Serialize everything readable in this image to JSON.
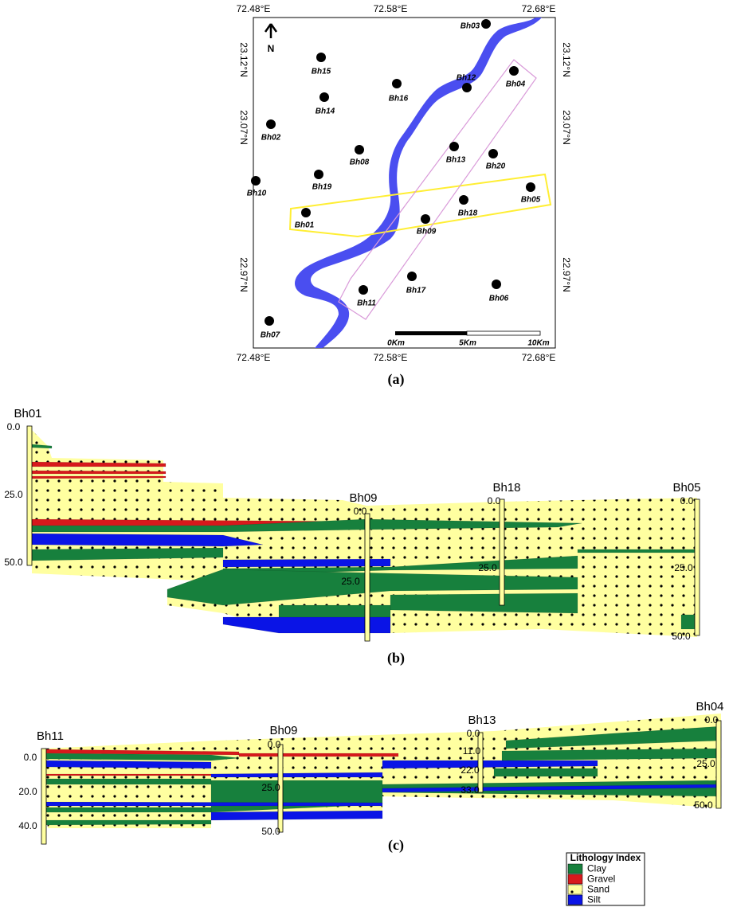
{
  "map": {
    "x_labels": [
      "72.48°E",
      "72.58°E",
      "72.68°E"
    ],
    "y_labels": [
      "23.12°N",
      "23.07°N",
      "22.97°N"
    ],
    "boreholes": [
      "Bh03",
      "Bh15",
      "Bh12",
      "Bh04",
      "Bh16",
      "Bh14",
      "Bh02",
      "Bh08",
      "Bh13",
      "Bh20",
      "Bh19",
      "Bh10",
      "Bh05",
      "Bh18",
      "Bh01",
      "Bh09",
      "Bh17",
      "Bh11",
      "Bh06",
      "Bh07"
    ],
    "scale_labels": [
      "0Km",
      "5Km",
      "10Km"
    ],
    "north": "N",
    "caption": "(a)"
  },
  "section_b": {
    "boreholes": [
      {
        "name": "Bh01",
        "depths": [
          "0.0",
          "25.0",
          "50.0"
        ]
      },
      {
        "name": "Bh09",
        "depths": [
          "0.0",
          "25.0"
        ]
      },
      {
        "name": "Bh18",
        "depths": [
          "0.0",
          "25.0"
        ]
      },
      {
        "name": "Bh05",
        "depths": [
          "0.0",
          "25.0",
          "50.0"
        ]
      }
    ],
    "caption": "(b)"
  },
  "section_c": {
    "boreholes": [
      {
        "name": "Bh11",
        "depths": [
          "0.0",
          "20.0",
          "40.0"
        ]
      },
      {
        "name": "Bh09",
        "depths": [
          "0.0",
          "25.0",
          "50.0"
        ]
      },
      {
        "name": "Bh13",
        "depths": [
          "0.0",
          "11.0",
          "22.0",
          "33.0"
        ]
      },
      {
        "name": "Bh04",
        "depths": [
          "0.0",
          "25.0",
          "50.0"
        ]
      }
    ],
    "caption": "(c)"
  },
  "legend": {
    "title": "Lithology Index",
    "items": [
      {
        "label": "Clay",
        "color": "#17803d"
      },
      {
        "label": "Gravel",
        "color": "#d7191c"
      },
      {
        "label": "Sand",
        "color": "#ffffa0"
      },
      {
        "label": "Silt",
        "color": "#0a14e6"
      }
    ]
  }
}
